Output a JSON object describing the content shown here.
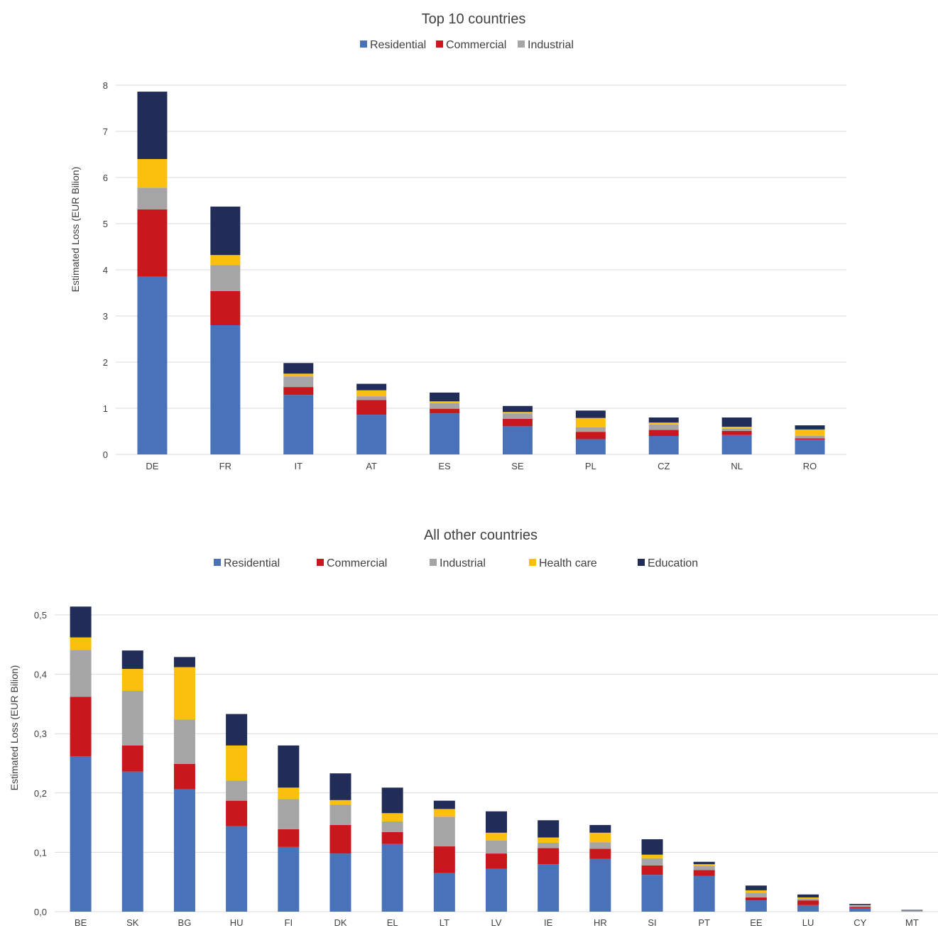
{
  "colors": {
    "residential": "#4a72b8",
    "commercial": "#c8181d",
    "industrial": "#a5a5a5",
    "health_care": "#fbbf0d",
    "education": "#212c59"
  },
  "chart_data": [
    {
      "type": "bar",
      "stacked": true,
      "title": "Top 10 countries",
      "ylabel": "Estimated Loss (EUR Bilion)",
      "xlabel": "",
      "ylim": [
        0,
        8
      ],
      "yticks": [
        "0",
        "1",
        "2",
        "3",
        "4",
        "5",
        "6",
        "7",
        "8"
      ],
      "grid": true,
      "legend_position": "top",
      "legend_entries": [
        "Residential",
        "Commercial",
        "Industrial"
      ],
      "categories": [
        "DE",
        "FR",
        "IT",
        "AT",
        "ES",
        "SE",
        "PL",
        "CZ",
        "NL",
        "RO"
      ],
      "series": [
        {
          "name": "Residential",
          "color_key": "residential",
          "values": [
            3.85,
            2.8,
            1.29,
            0.86,
            0.89,
            0.61,
            0.33,
            0.4,
            0.42,
            0.32
          ]
        },
        {
          "name": "Commercial",
          "color_key": "commercial",
          "values": [
            1.46,
            0.74,
            0.17,
            0.32,
            0.1,
            0.16,
            0.16,
            0.13,
            0.09,
            0.03
          ]
        },
        {
          "name": "Industrial",
          "color_key": "industrial",
          "values": [
            0.47,
            0.56,
            0.23,
            0.08,
            0.12,
            0.12,
            0.1,
            0.12,
            0.05,
            0.05
          ]
        },
        {
          "color_key": "health_care",
          "values": [
            0.62,
            0.22,
            0.06,
            0.13,
            0.04,
            0.03,
            0.2,
            0.04,
            0.04,
            0.14
          ]
        },
        {
          "color_key": "education",
          "values": [
            1.46,
            1.05,
            0.23,
            0.14,
            0.19,
            0.13,
            0.16,
            0.11,
            0.2,
            0.09
          ]
        }
      ]
    },
    {
      "type": "bar",
      "stacked": true,
      "title": "All other countries",
      "ylabel": "Estimated Loss (EUR Bilion)",
      "xlabel": "",
      "ylim": [
        0,
        0.5
      ],
      "yticks": [
        "0,0",
        "0,1",
        "0,2",
        "0,3",
        "0,4",
        "0,5"
      ],
      "grid": true,
      "legend_position": "top",
      "legend_entries": [
        "Residential",
        "Commercial",
        "Industrial",
        "Health care",
        "Education"
      ],
      "categories": [
        "BE",
        "SK",
        "BG",
        "HU",
        "FI",
        "DK",
        "EL",
        "LT",
        "LV",
        "IE",
        "HR",
        "SI",
        "PT",
        "EE",
        "LU",
        "CY",
        "MT"
      ],
      "series": [
        {
          "name": "Residential",
          "color_key": "residential",
          "values": [
            0.262,
            0.236,
            0.206,
            0.144,
            0.109,
            0.098,
            0.114,
            0.065,
            0.072,
            0.08,
            0.089,
            0.062,
            0.06,
            0.019,
            0.011,
            0.006,
            0.0
          ]
        },
        {
          "name": "Commercial",
          "color_key": "commercial",
          "values": [
            0.1,
            0.044,
            0.043,
            0.043,
            0.03,
            0.048,
            0.02,
            0.045,
            0.026,
            0.027,
            0.017,
            0.016,
            0.01,
            0.005,
            0.008,
            0.002,
            0.0
          ]
        },
        {
          "name": "Industrial",
          "color_key": "industrial",
          "values": [
            0.079,
            0.092,
            0.075,
            0.034,
            0.051,
            0.034,
            0.018,
            0.05,
            0.022,
            0.009,
            0.011,
            0.012,
            0.007,
            0.008,
            0.003,
            0.002,
            0.002
          ]
        },
        {
          "name": "Health care",
          "color_key": "health_care",
          "values": [
            0.021,
            0.037,
            0.088,
            0.059,
            0.019,
            0.008,
            0.014,
            0.013,
            0.013,
            0.009,
            0.016,
            0.006,
            0.003,
            0.004,
            0.002,
            0.001,
            0.0
          ]
        },
        {
          "name": "Education",
          "color_key": "education",
          "values": [
            0.052,
            0.031,
            0.017,
            0.053,
            0.071,
            0.045,
            0.043,
            0.014,
            0.036,
            0.029,
            0.013,
            0.026,
            0.004,
            0.008,
            0.005,
            0.002,
            0.001
          ]
        }
      ]
    }
  ]
}
